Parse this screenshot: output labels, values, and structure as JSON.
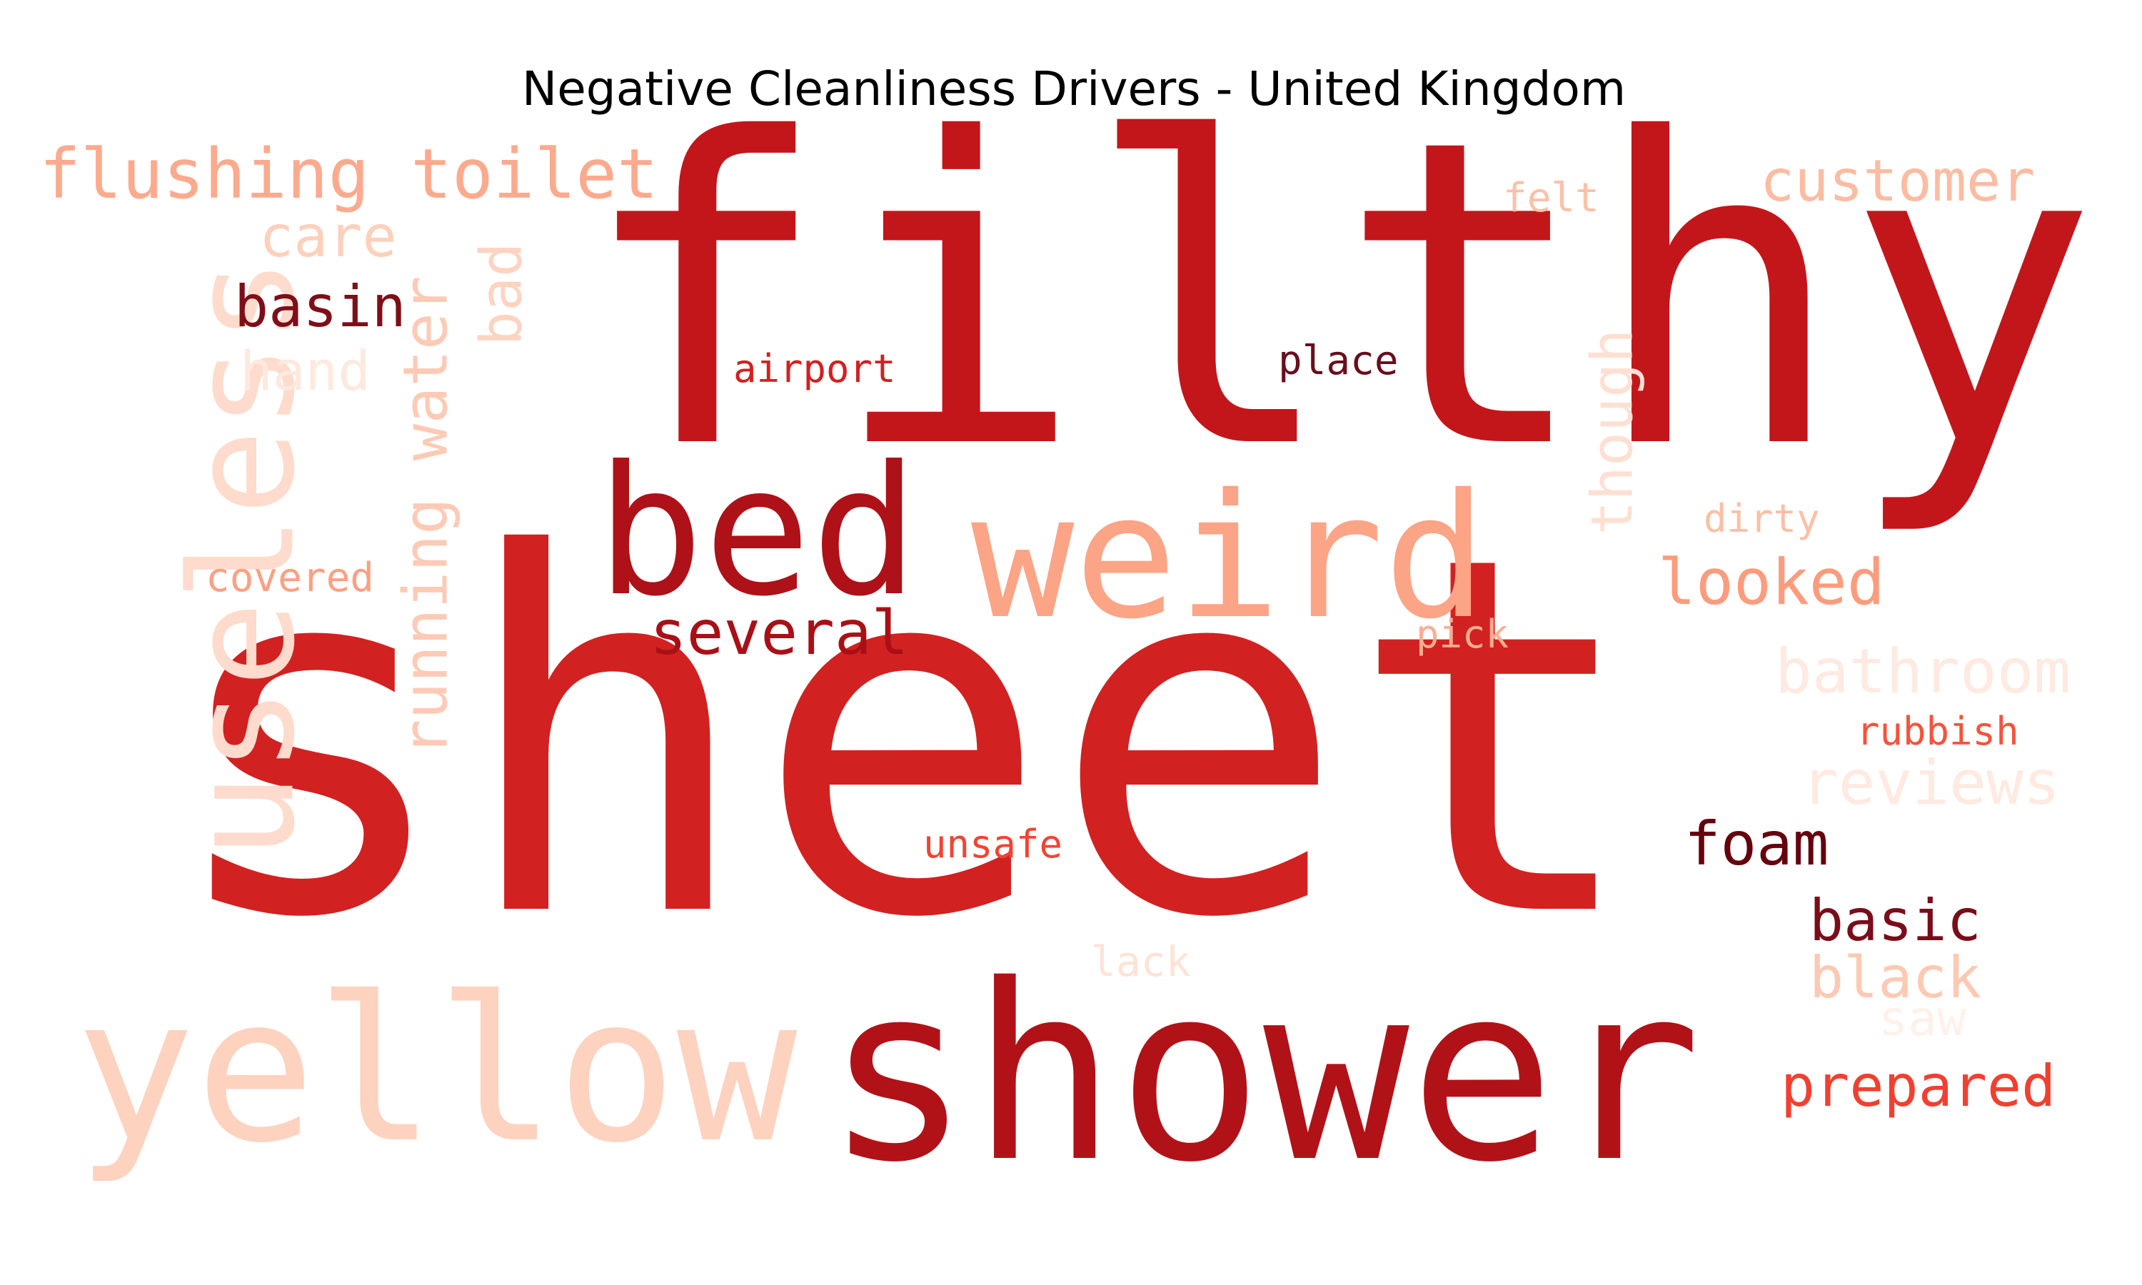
{
  "title": "Negative Cleanliness Drivers - United Kingdom",
  "words": [
    {
      "text": "filthy",
      "color": "#c3161b",
      "vertical": false
    },
    {
      "text": "sheet",
      "color": "#d22121",
      "vertical": false
    },
    {
      "text": "shower",
      "color": "#b11218",
      "vertical": false
    },
    {
      "text": "yellow",
      "color": "#fdd2bf",
      "vertical": false
    },
    {
      "text": "useless",
      "color": "#fedbcc",
      "vertical": true
    },
    {
      "text": "weird",
      "color": "#fca486",
      "vertical": false
    },
    {
      "text": "bed",
      "color": "#ae1117",
      "vertical": false
    },
    {
      "text": "flushing toilet",
      "color": "#fcaa8d",
      "vertical": false
    },
    {
      "text": "running water",
      "color": "#fdcab5",
      "vertical": true
    },
    {
      "text": "customer",
      "color": "#fcbca2",
      "vertical": false
    },
    {
      "text": "care",
      "color": "#fdd0bc",
      "vertical": false
    },
    {
      "text": "bad",
      "color": "#fdd3c1",
      "vertical": true
    },
    {
      "text": "basin",
      "color": "#7f0e18",
      "vertical": false
    },
    {
      "text": "hand",
      "color": "#fee9df",
      "vertical": false
    },
    {
      "text": "airport",
      "color": "#d32020",
      "vertical": false
    },
    {
      "text": "place",
      "color": "#6a0d1c",
      "vertical": false
    },
    {
      "text": "felt",
      "color": "#fcc1a8",
      "vertical": false
    },
    {
      "text": "though",
      "color": "#fee0d2",
      "vertical": true
    },
    {
      "text": "dirty",
      "color": "#fcbfa6",
      "vertical": false
    },
    {
      "text": "looked",
      "color": "#fc9c7d",
      "vertical": false
    },
    {
      "text": "several",
      "color": "#a91016",
      "vertical": false
    },
    {
      "text": "covered",
      "color": "#fca082",
      "vertical": false
    },
    {
      "text": "pick",
      "color": "#fcae92",
      "vertical": false
    },
    {
      "text": "bathroom",
      "color": "#feeae1",
      "vertical": false
    },
    {
      "text": "rubbish",
      "color": "#f5533b",
      "vertical": false
    },
    {
      "text": "reviews",
      "color": "#feeae1",
      "vertical": false
    },
    {
      "text": "unsafe",
      "color": "#f14432",
      "vertical": false
    },
    {
      "text": "foam",
      "color": "#67000d",
      "vertical": false
    },
    {
      "text": "basic",
      "color": "#7a0d19",
      "vertical": false
    },
    {
      "text": "lack",
      "color": "#fee3d6",
      "vertical": false
    },
    {
      "text": "black",
      "color": "#fdc9b3",
      "vertical": false
    },
    {
      "text": "saw",
      "color": "#fff1ea",
      "vertical": false
    },
    {
      "text": "prepared",
      "color": "#f14030",
      "vertical": false
    }
  ]
}
